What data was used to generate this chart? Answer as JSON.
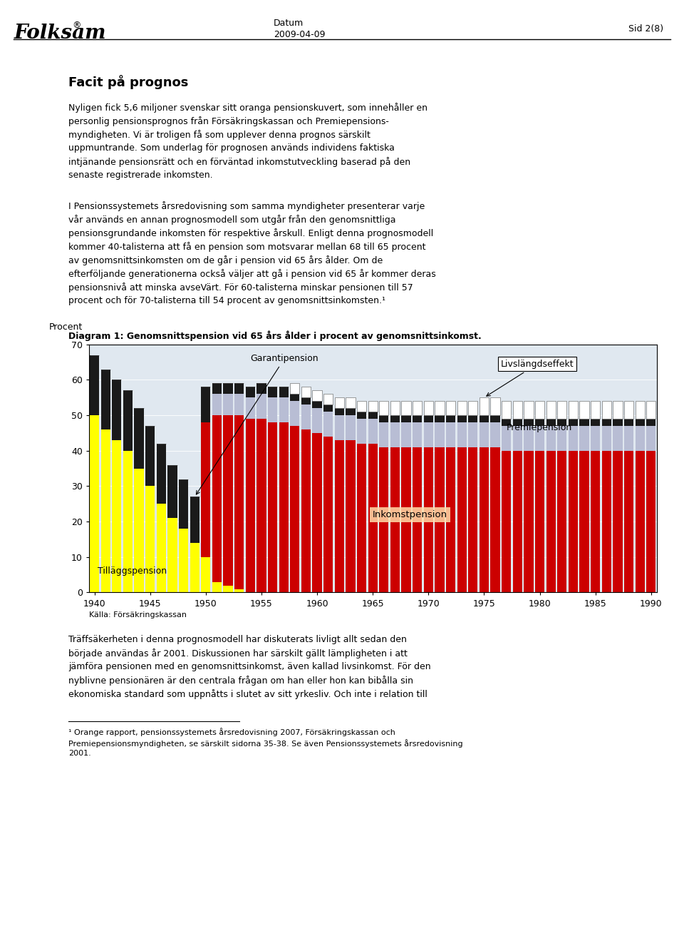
{
  "title": "Diagram 1: Genomsnittspension vid 65 års ålder i procent av genomsnittsinkomst.",
  "ylabel": "Procent",
  "source": "Källa: Försäkringskassan",
  "header_center_label": "Datum",
  "header_center_value": "2009-04-09",
  "header_right": "Sid 2(8)",
  "years": [
    1940,
    1941,
    1942,
    1943,
    1944,
    1945,
    1946,
    1947,
    1948,
    1949,
    1950,
    1951,
    1952,
    1953,
    1954,
    1955,
    1956,
    1957,
    1958,
    1959,
    1960,
    1961,
    1962,
    1963,
    1964,
    1965,
    1966,
    1967,
    1968,
    1969,
    1970,
    1971,
    1972,
    1973,
    1974,
    1975,
    1976,
    1977,
    1978,
    1979,
    1980,
    1981,
    1982,
    1983,
    1984,
    1985,
    1986,
    1987,
    1988,
    1989,
    1990
  ],
  "tillaggspension": [
    50,
    46,
    43,
    40,
    35,
    30,
    25,
    21,
    18,
    14,
    10,
    3,
    2,
    1,
    0,
    0,
    0,
    0,
    0,
    0,
    0,
    0,
    0,
    0,
    0,
    0,
    0,
    0,
    0,
    0,
    0,
    0,
    0,
    0,
    0,
    0,
    0,
    0,
    0,
    0,
    0,
    0,
    0,
    0,
    0,
    0,
    0,
    0,
    0,
    0,
    0
  ],
  "inkomstpension": [
    0,
    0,
    0,
    0,
    0,
    0,
    0,
    0,
    0,
    0,
    38,
    47,
    48,
    49,
    49,
    49,
    48,
    48,
    47,
    46,
    45,
    44,
    43,
    43,
    42,
    42,
    41,
    41,
    41,
    41,
    41,
    41,
    41,
    41,
    41,
    41,
    41,
    40,
    40,
    40,
    40,
    40,
    40,
    40,
    40,
    40,
    40,
    40,
    40,
    40,
    40
  ],
  "premiepension": [
    0,
    0,
    0,
    0,
    0,
    0,
    0,
    0,
    0,
    0,
    0,
    6,
    6,
    6,
    6,
    7,
    7,
    7,
    7,
    7,
    7,
    7,
    7,
    7,
    7,
    7,
    7,
    7,
    7,
    7,
    7,
    7,
    7,
    7,
    7,
    7,
    7,
    7,
    7,
    7,
    7,
    7,
    7,
    7,
    7,
    7,
    7,
    7,
    7,
    7,
    7
  ],
  "garantipension": [
    17,
    17,
    17,
    17,
    17,
    17,
    17,
    15,
    14,
    13,
    10,
    3,
    3,
    3,
    3,
    3,
    3,
    3,
    2,
    2,
    2,
    2,
    2,
    2,
    2,
    2,
    2,
    2,
    2,
    2,
    2,
    2,
    2,
    2,
    2,
    2,
    2,
    2,
    2,
    2,
    2,
    2,
    2,
    2,
    2,
    2,
    2,
    2,
    2,
    2,
    2
  ],
  "livslagdseffekt": [
    0,
    0,
    0,
    0,
    0,
    0,
    0,
    0,
    0,
    0,
    0,
    0,
    0,
    0,
    0,
    0,
    0,
    0,
    3,
    3,
    3,
    3,
    3,
    3,
    3,
    3,
    4,
    4,
    4,
    4,
    4,
    4,
    4,
    4,
    4,
    5,
    5,
    5,
    5,
    5,
    5,
    5,
    5,
    5,
    5,
    5,
    5,
    5,
    5,
    5,
    5
  ],
  "colors": {
    "tillaggspension": "#FFFF00",
    "inkomstpension": "#CC0000",
    "premiepension": "#B8BDD4",
    "garantipension": "#1A1A1A",
    "livslagdseffekt": "#FFFFFF"
  },
  "chart_bg": "#E0E8F0",
  "ylim": [
    0,
    70
  ],
  "yticks": [
    0,
    10,
    20,
    30,
    40,
    50,
    60,
    70
  ]
}
